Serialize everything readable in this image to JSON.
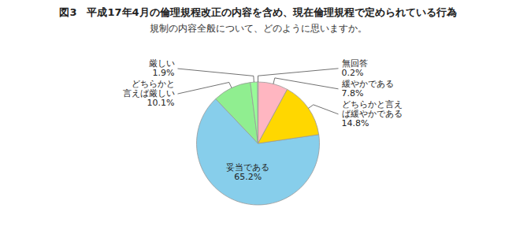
{
  "chart_data": {
    "type": "pie",
    "title": "図3　平成17年4月の倫理規程改正の内容を含め、現在倫理規程で定められている行為",
    "subtitle": "規制の内容全般について、どのように思いますか。",
    "categories": [
      "妥当である",
      "どちらかと\n言えば厳しい",
      "厳しい",
      "無回答",
      "緩やかである",
      "どちらかと言え\nば緩やかである"
    ],
    "values": [
      65.2,
      10.1,
      1.9,
      0.2,
      7.8,
      14.8
    ],
    "value_labels": [
      "65.2%",
      "10.1%",
      "1.9%",
      "0.2%",
      "7.8%",
      "14.8%"
    ],
    "colors": [
      "#87CEEB",
      "#90EE90",
      "#98FB98",
      "#FFFFFF",
      "#FFB6C1",
      "#FFD700"
    ],
    "data_labels": true
  }
}
